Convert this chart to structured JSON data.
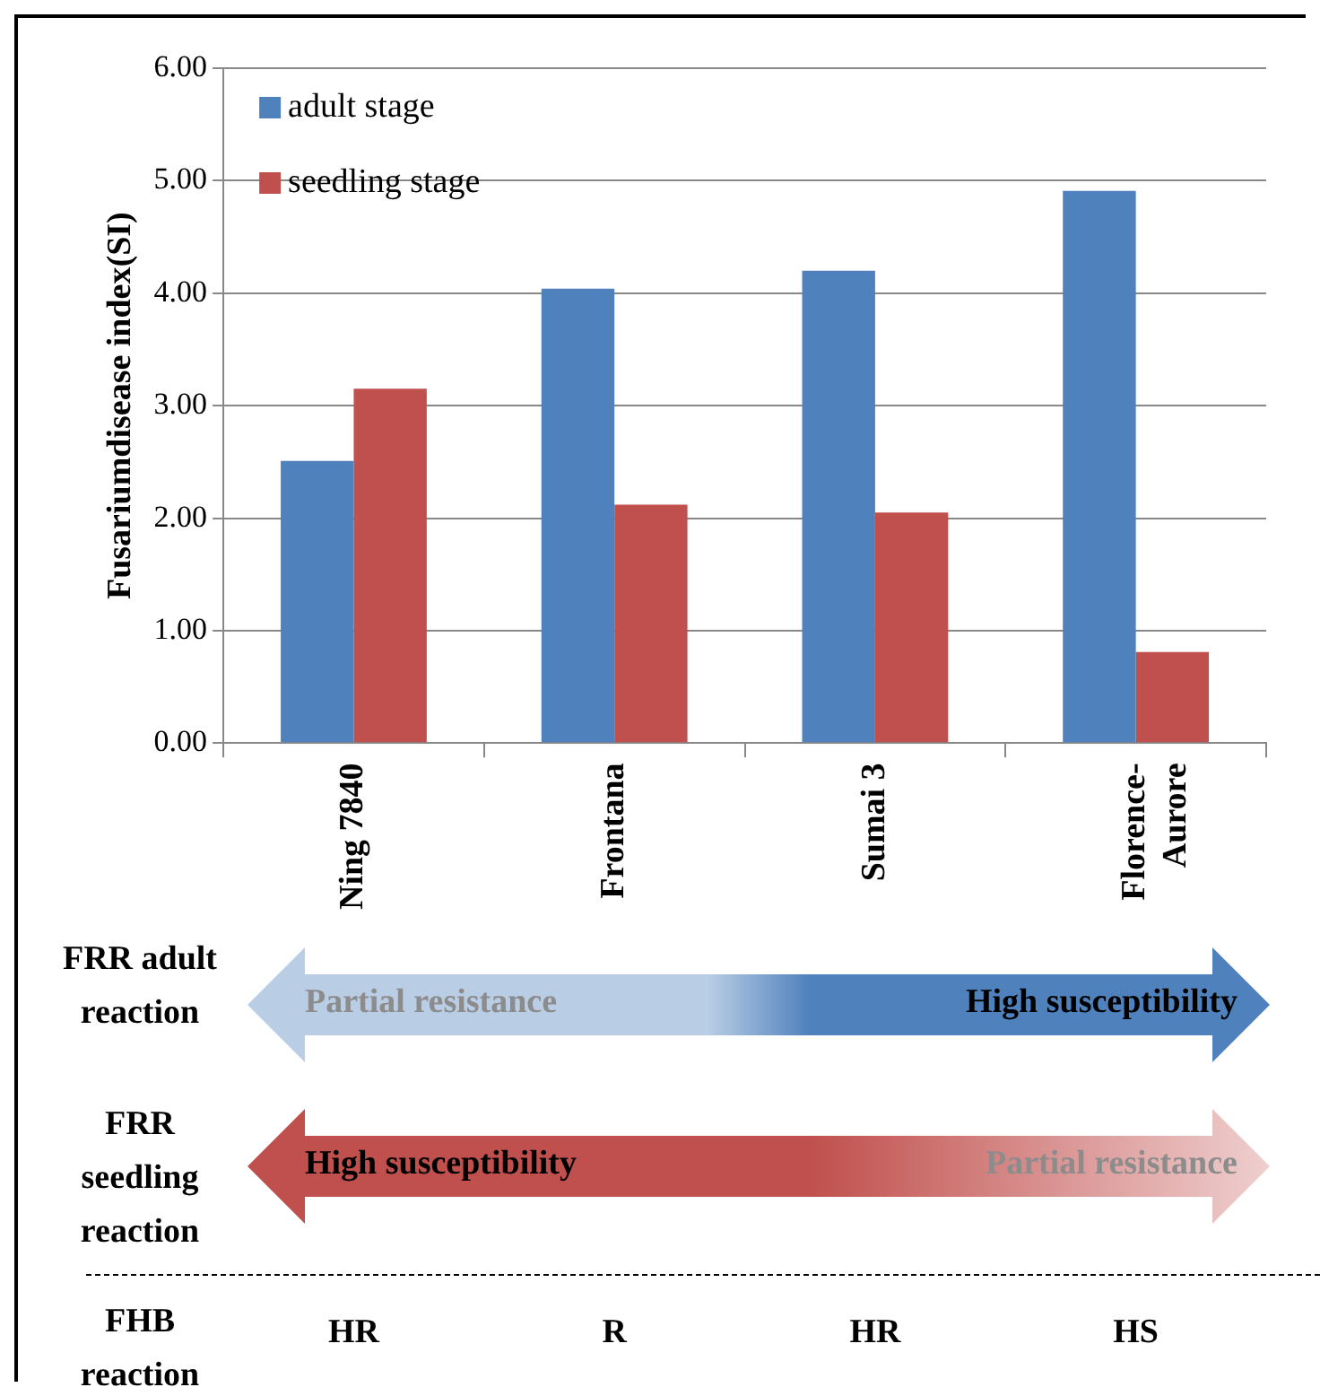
{
  "chart_data": {
    "type": "bar",
    "ylabel": "Fusariumdisease index(SI)",
    "categories": [
      "Ning 7840",
      "Frontana",
      "Sumai 3",
      "Florence-Aurore"
    ],
    "series": [
      {
        "name": "adult stage",
        "color": "#4f81bd",
        "values": [
          2.51,
          4.04,
          4.2,
          4.91
        ]
      },
      {
        "name": "seedling stage",
        "color": "#c0504d",
        "values": [
          3.15,
          2.12,
          2.05,
          0.81
        ]
      }
    ],
    "ylim": [
      0,
      6
    ],
    "yticks": [
      {
        "value": 0,
        "label": "0.00"
      },
      {
        "value": 1,
        "label": "1.00"
      },
      {
        "value": 2,
        "label": "2.00"
      },
      {
        "value": 3,
        "label": "3.00"
      },
      {
        "value": 4,
        "label": "4.00"
      },
      {
        "value": 5,
        "label": "5.00"
      },
      {
        "value": 6,
        "label": "6.00"
      }
    ],
    "grid": "y",
    "legend": "top left",
    "annotations": [
      "FRR adult reaction",
      "Partial resistance",
      "High susceptibility",
      "FRR seedling reaction",
      "High susceptibility",
      "Partial resistance",
      "FHB reaction",
      "HR",
      "R",
      "HR",
      "HS"
    ]
  }
}
